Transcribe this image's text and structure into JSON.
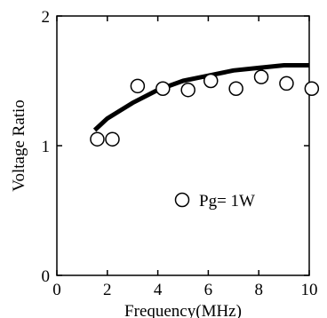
{
  "chart_data": {
    "type": "scatter",
    "xlabel": "Frequency(MHz)",
    "ylabel": "Voltage Ratio",
    "xlim": [
      0,
      10
    ],
    "ylim": [
      0,
      2
    ],
    "x_ticks": [
      0,
      2,
      4,
      6,
      8,
      10
    ],
    "y_ticks": [
      0,
      1,
      2
    ],
    "x_tick_labels": [
      "0",
      "2",
      "4",
      "6",
      "8",
      "10"
    ],
    "y_tick_labels": [
      "0",
      "1",
      "2"
    ],
    "grid": false,
    "legend_position": "lower-right",
    "series": [
      {
        "name": "Pg= 1W",
        "kind": "scatter",
        "marker": "open-circle",
        "x": [
          1.6,
          2.2,
          3.2,
          4.2,
          5.2,
          6.1,
          7.1,
          8.1,
          9.1,
          10.1
        ],
        "y": [
          1.05,
          1.05,
          1.46,
          1.44,
          1.43,
          1.5,
          1.44,
          1.53,
          1.48,
          1.44
        ]
      },
      {
        "kind": "line",
        "x": [
          1.5,
          2.0,
          3.0,
          4.0,
          5.0,
          6.0,
          7.0,
          8.0,
          9.0,
          10.0
        ],
        "y": [
          1.12,
          1.21,
          1.33,
          1.43,
          1.5,
          1.54,
          1.58,
          1.6,
          1.62,
          1.62
        ]
      }
    ]
  },
  "colors": {
    "axis": "#000000",
    "line": "#000000",
    "marker_stroke": "#000000",
    "marker_fill": "#ffffff"
  }
}
